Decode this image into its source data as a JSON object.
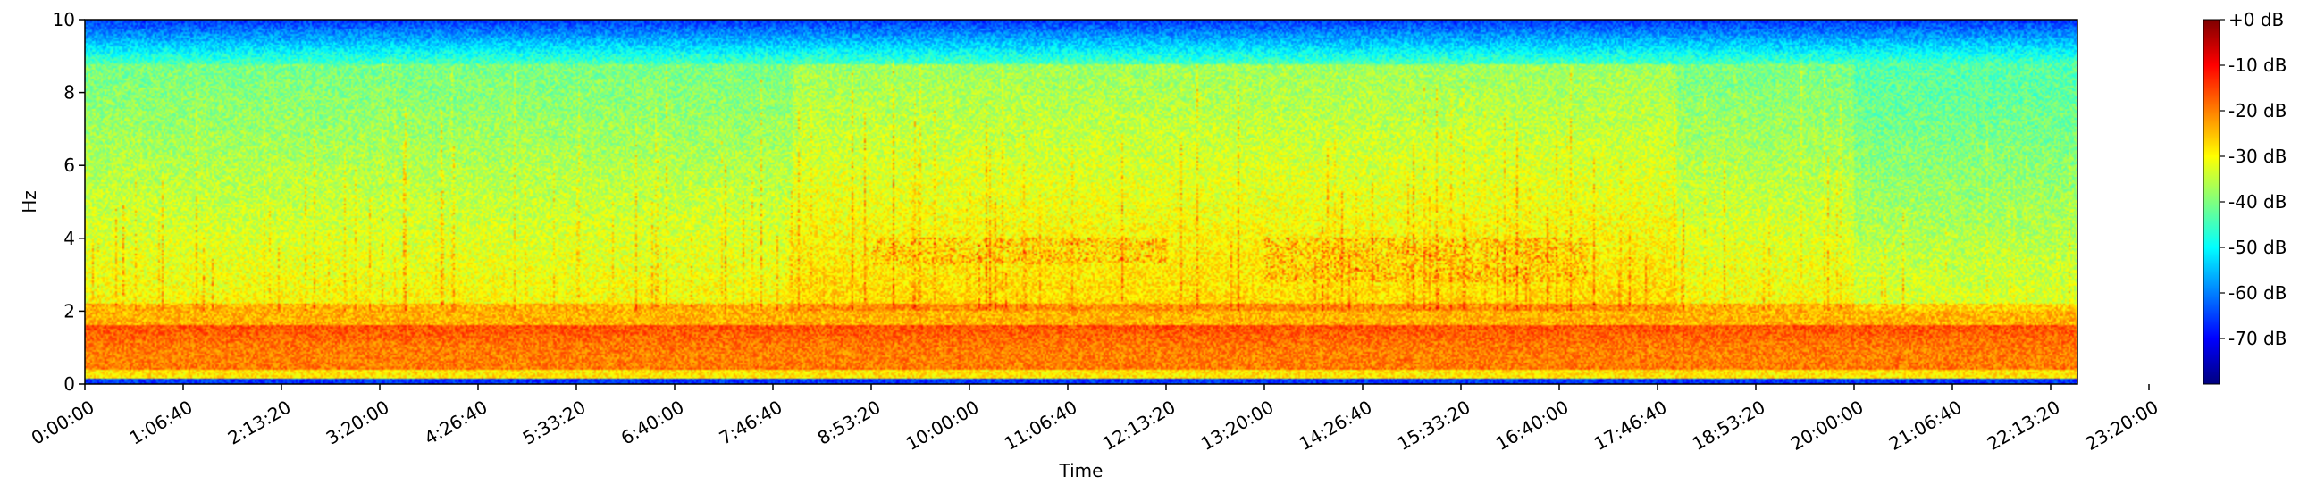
{
  "chart_data": {
    "type": "heatmap",
    "title": "",
    "xlabel": "Time",
    "ylabel": "Hz",
    "ylim": [
      0,
      10
    ],
    "yticks": [
      "0",
      "2",
      "4",
      "6",
      "8",
      "10"
    ],
    "xticks": [
      "0:00:00",
      "1:06:40",
      "2:13:20",
      "3:20:00",
      "4:26:40",
      "5:33:20",
      "6:40:00",
      "7:46:40",
      "8:53:20",
      "10:00:00",
      "11:06:40",
      "12:13:20",
      "13:20:00",
      "14:26:40",
      "15:33:20",
      "16:40:00",
      "17:46:40",
      "18:53:20",
      "20:00:00",
      "21:06:40",
      "22:13:20",
      "23:20:00"
    ],
    "colormap": "jet",
    "colorbar": {
      "ticks": [
        "+0 dB",
        "-10 dB",
        "-20 dB",
        "-30 dB",
        "-40 dB",
        "-50 dB",
        "-60 dB",
        "-70 dB"
      ],
      "range_db": [
        -80,
        0
      ]
    },
    "grid": false,
    "features": [
      {
        "description": "strong low-frequency band",
        "freq_hz": [
          0.3,
          1.8
        ],
        "level_db": -18
      },
      {
        "description": "high-frequency rolloff",
        "freq_hz": [
          9.0,
          10.0
        ],
        "level_db": -62
      },
      {
        "description": "activity band around 3.6 Hz",
        "time": [
          "8:53:20",
          "12:13:20"
        ],
        "freq_hz": [
          3.3,
          4.0
        ],
        "level_db": -22
      },
      {
        "description": "activity band around 3.6 Hz",
        "time": [
          "13:20:00",
          "17:00:00"
        ],
        "freq_hz": [
          2.8,
          4.0
        ],
        "level_db": -22
      }
    ]
  }
}
